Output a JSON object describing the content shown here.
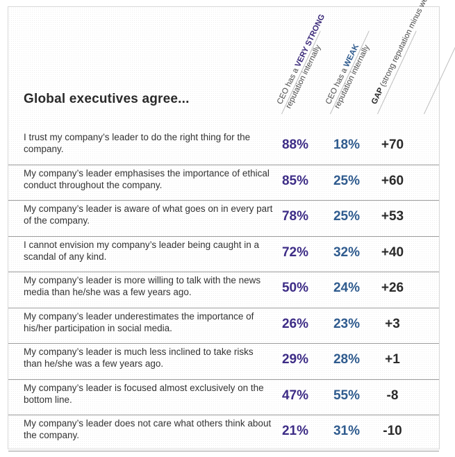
{
  "chart_data": {
    "type": "table",
    "title": "Global executives agree...",
    "columns": [
      {
        "lead": "CEO has a",
        "emphasis": "VERY STRONG",
        "rest": "reputation internally"
      },
      {
        "lead": "CEO has a",
        "emphasis": "WEAK",
        "rest": "reputation internally"
      },
      {
        "lead": "",
        "emphasis": "GAP",
        "rest": "(strong reputation minus weak)"
      }
    ],
    "rows": [
      {
        "statement": "I trust my company’s leader to do the right thing for the company.",
        "very_strong": "88%",
        "weak": "18%",
        "gap": "+70"
      },
      {
        "statement": "My company’s leader emphasises the importance of ethical conduct throughout the company.",
        "very_strong": "85%",
        "weak": "25%",
        "gap": "+60"
      },
      {
        "statement": "My company’s leader is aware of what goes on in every part of the company.",
        "very_strong": "78%",
        "weak": "25%",
        "gap": "+53"
      },
      {
        "statement": "I cannot envision my company’s leader being caught in a scandal of any kind.",
        "very_strong": "72%",
        "weak": "32%",
        "gap": "+40"
      },
      {
        "statement": "My company’s leader is more willing to talk with the news media than he/she was a few years ago.",
        "very_strong": "50%",
        "weak": "24%",
        "gap": "+26"
      },
      {
        "statement": "My company’s leader underestimates the importance of his/her participation in social media.",
        "very_strong": "26%",
        "weak": "23%",
        "gap": "+3"
      },
      {
        "statement": "My company’s leader is much less inclined to take risks than he/she was a few years ago.",
        "very_strong": "29%",
        "weak": "28%",
        "gap": "+1"
      },
      {
        "statement": "My company’s leader is focused almost exclusively on the bottom line.",
        "very_strong": "47%",
        "weak": "55%",
        "gap": "-8"
      },
      {
        "statement": "My company’s leader does not care what others think about the company.",
        "very_strong": "21%",
        "weak": "31%",
        "gap": "-10"
      }
    ]
  },
  "colors": {
    "very_strong": "#3d2c86",
    "weak": "#2f5b8e",
    "gap": "#2a2a2a",
    "rule": "#9c9c9c"
  }
}
